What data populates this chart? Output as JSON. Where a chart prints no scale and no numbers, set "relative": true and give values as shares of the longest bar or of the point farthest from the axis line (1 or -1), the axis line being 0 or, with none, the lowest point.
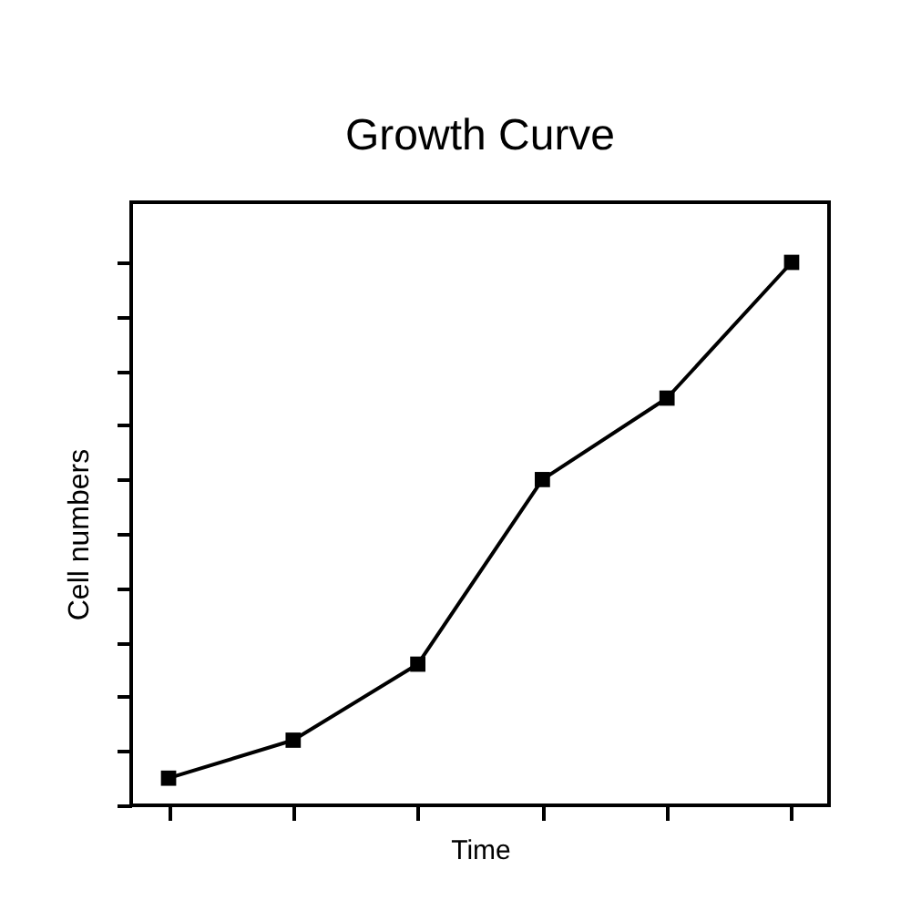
{
  "chart_data": {
    "type": "line",
    "title": "Growth Curve",
    "xlabel": "Time",
    "ylabel": "Cell numbers",
    "categories": [
      null,
      null,
      null,
      null,
      null,
      null
    ],
    "values": [
      0.05,
      0.12,
      0.26,
      0.6,
      0.75,
      1
    ],
    "color": "#000000",
    "relative": true,
    "marker": "square",
    "line_style": "solid"
  }
}
